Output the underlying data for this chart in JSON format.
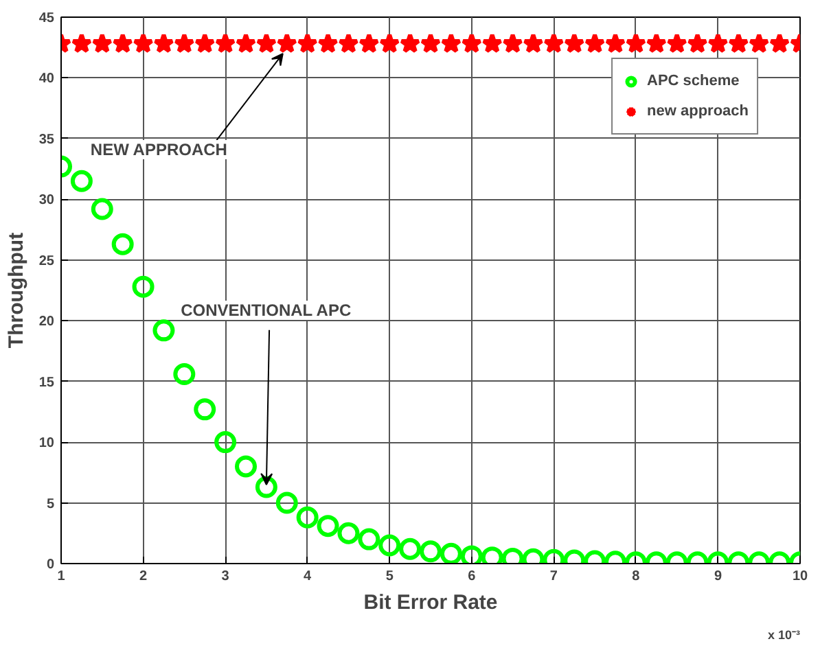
{
  "chart_data": {
    "type": "scatter",
    "xlabel": "Bit Error Rate",
    "ylabel": "Throughput",
    "x": [
      1,
      1.25,
      1.5,
      1.75,
      2,
      2.25,
      2.5,
      2.75,
      3,
      3.25,
      3.5,
      3.75,
      4,
      4.25,
      4.5,
      4.75,
      5,
      5.25,
      5.5,
      5.75,
      6,
      6.25,
      6.5,
      6.75,
      7,
      7.25,
      7.5,
      7.75,
      8,
      8.25,
      8.5,
      8.75,
      9,
      9.25,
      9.5,
      9.75,
      10
    ],
    "series": [
      {
        "name": "APC scheme",
        "color": "#00ff00",
        "marker": "circle",
        "values": [
          32.7,
          31.5,
          29.2,
          26.3,
          22.8,
          19.2,
          15.6,
          12.7,
          10.0,
          8.0,
          6.3,
          5.0,
          3.8,
          3.1,
          2.5,
          2.0,
          1.5,
          1.2,
          1.0,
          0.8,
          0.6,
          0.5,
          0.4,
          0.35,
          0.3,
          0.25,
          0.2,
          0.15,
          0.1,
          0.1,
          0.1,
          0.1,
          0.1,
          0.1,
          0.1,
          0.1,
          0.1
        ]
      },
      {
        "name": "new approach",
        "color": "#ff0000",
        "marker": "star",
        "values": [
          42.8,
          42.8,
          42.8,
          42.8,
          42.8,
          42.8,
          42.8,
          42.8,
          42.8,
          42.8,
          42.8,
          42.8,
          42.8,
          42.8,
          42.8,
          42.8,
          42.8,
          42.8,
          42.8,
          42.8,
          42.8,
          42.8,
          42.8,
          42.8,
          42.8,
          42.8,
          42.8,
          42.8,
          42.8,
          42.8,
          42.8,
          42.8,
          42.8,
          42.8,
          42.8,
          42.8,
          42.8
        ]
      }
    ],
    "xlim": [
      1,
      10
    ],
    "ylim": [
      0,
      45
    ],
    "xticks": [
      1,
      2,
      3,
      4,
      5,
      6,
      7,
      8,
      9,
      10
    ],
    "yticks": [
      0,
      5,
      10,
      15,
      20,
      25,
      30,
      35,
      40,
      45
    ],
    "grid": true,
    "legend": "top right",
    "annotations": [
      {
        "text": "NEW APPROACH",
        "x": 3.7,
        "y": 42
      },
      {
        "text": "CONVENTIONAL APC",
        "x": 3.5,
        "y": 6.5
      },
      "x 10⁻³"
    ]
  }
}
